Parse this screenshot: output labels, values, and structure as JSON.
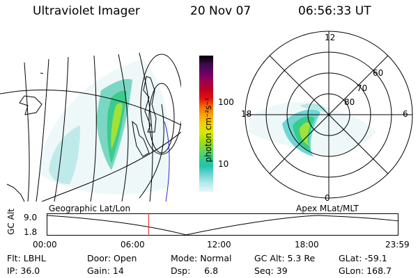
{
  "header": {
    "instrument": "Ultraviolet Imager",
    "date": "20 Nov 07",
    "time": "06:56:33 UT"
  },
  "colorbar": {
    "label": "photon cm⁻²s⁻¹",
    "ticks": [
      "100",
      "10"
    ],
    "colors": [
      "#000000",
      "#3b0a4a",
      "#6a006a",
      "#9b0050",
      "#c00020",
      "#e01010",
      "#f56a00",
      "#f6a600",
      "#f2d000",
      "#d8e800",
      "#a8e000",
      "#6fd84a",
      "#38cc88",
      "#22c4b0",
      "#6fd6d4",
      "#b6eaea",
      "#e6f6f6"
    ]
  },
  "polar": {
    "ring_labels": [
      "80",
      "70",
      "60"
    ],
    "clock_labels": {
      "top": "12",
      "bottom": "0",
      "left": "18",
      "right": "6"
    }
  },
  "timeline": {
    "left_label": "Geographic Lat/Lon",
    "right_label": "Apex  MLat/MLT",
    "axis_title": "GC Alt",
    "y_ticks": [
      "9.0",
      "1.8"
    ],
    "x_ticks": [
      "00:00",
      "06:00",
      "12:00",
      "18:00",
      "23:59"
    ],
    "current_time_fraction": 0.29
  },
  "status": {
    "row1": [
      "Flt: LBHL",
      "Door: Open",
      "Mode: Normal",
      "GC Alt: 5.3 Re",
      "GLat: -59.1"
    ],
    "row2": [
      "IP: 36.0",
      "Gain: 14",
      "Dsp:     6.8",
      "Seq: 39",
      "GLon: 168.7"
    ]
  }
}
